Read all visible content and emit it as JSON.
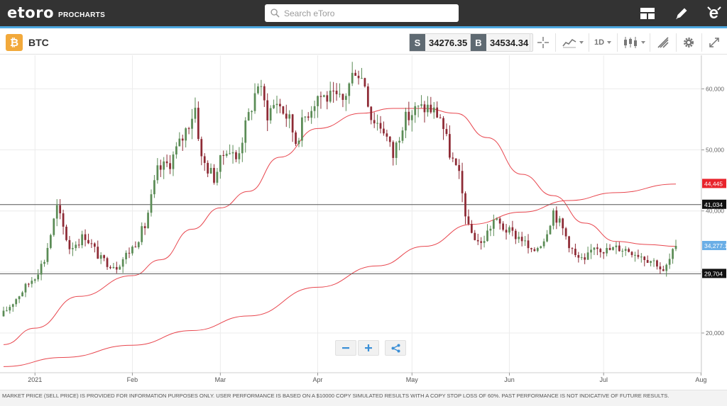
{
  "header": {
    "logo_text": "etoro",
    "logo_sub": "PROCHARTS",
    "search_placeholder": "Search eToro",
    "icons": [
      "layout-icon",
      "pencil-icon",
      "etoro-e-icon"
    ]
  },
  "toolbar": {
    "symbol": "BTC",
    "badge_icon": "bitcoin-icon",
    "sell_tag": "S",
    "sell_price": "34276.35",
    "buy_tag": "B",
    "buy_price": "34534.34",
    "timeframe": "1D",
    "icons": [
      "crosshair-icon",
      "chart-type-icon",
      "candles-icon",
      "drawing-tools-icon",
      "settings-icon",
      "fullscreen-icon"
    ]
  },
  "colors": {
    "up": "#5b8c56",
    "down": "#8e2a35",
    "ma": "#e8464e",
    "accent": "#4ea9e1",
    "line_red_label": "#e8232b",
    "line_black_label": "#111111",
    "price_label": "#6aaee6"
  },
  "chart_data": {
    "type": "candlestick",
    "ylim": [
      13500,
      65500
    ],
    "y_ticks": [
      20000,
      30000,
      40000,
      50000,
      60000
    ],
    "y_tick_labels": [
      "20,000",
      "30,000",
      "40,000",
      "50,000",
      "60,000"
    ],
    "x_tick_labels": [
      "2021",
      "Feb",
      "Mar",
      "Apr",
      "May",
      "Jun",
      "Jul",
      "Aug"
    ],
    "x_tick_dates": [
      "2021-01-01",
      "2021-02-01",
      "2021-03-01",
      "2021-04-01",
      "2021-05-01",
      "2021-06-01",
      "2021-07-01",
      "2021-08-01"
    ],
    "start_date": "2020-12-22",
    "end_date": "2021-07-24",
    "close_path": [
      [
        "2020-12-22",
        23200
      ],
      [
        "2020-12-27",
        26300
      ],
      [
        "2021-01-01",
        29400
      ],
      [
        "2021-01-04",
        32000
      ],
      [
        "2021-01-08",
        40500
      ],
      [
        "2021-01-12",
        34000
      ],
      [
        "2021-01-17",
        36000
      ],
      [
        "2021-01-22",
        32000
      ],
      [
        "2021-01-27",
        31000
      ],
      [
        "2021-02-01",
        34000
      ],
      [
        "2021-02-05",
        37500
      ],
      [
        "2021-02-09",
        46500
      ],
      [
        "2021-02-13",
        48000
      ],
      [
        "2021-02-17",
        52000
      ],
      [
        "2021-02-21",
        57000
      ],
      [
        "2021-02-23",
        48500
      ],
      [
        "2021-02-27",
        45500
      ],
      [
        "2021-03-03",
        50500
      ],
      [
        "2021-03-06",
        48500
      ],
      [
        "2021-03-10",
        55500
      ],
      [
        "2021-03-13",
        61000
      ],
      [
        "2021-03-16",
        56000
      ],
      [
        "2021-03-19",
        58000
      ],
      [
        "2021-03-23",
        54800
      ],
      [
        "2021-03-25",
        51500
      ],
      [
        "2021-03-28",
        55500
      ],
      [
        "2021-04-01",
        59000
      ],
      [
        "2021-04-05",
        58500
      ],
      [
        "2021-04-09",
        58000
      ],
      [
        "2021-04-13",
        63500
      ],
      [
        "2021-04-16",
        61000
      ],
      [
        "2021-04-18",
        55500
      ],
      [
        "2021-04-22",
        53500
      ],
      [
        "2021-04-25",
        49000
      ],
      [
        "2021-04-28",
        54500
      ],
      [
        "2021-05-02",
        56500
      ],
      [
        "2021-05-06",
        57000
      ],
      [
        "2021-05-10",
        55500
      ],
      [
        "2021-05-13",
        49500
      ],
      [
        "2021-05-16",
        45500
      ],
      [
        "2021-05-19",
        37000
      ],
      [
        "2021-05-23",
        34500
      ],
      [
        "2021-05-27",
        38500
      ],
      [
        "2021-06-01",
        36500
      ],
      [
        "2021-06-05",
        35500
      ],
      [
        "2021-06-08",
        33000
      ],
      [
        "2021-06-12",
        35500
      ],
      [
        "2021-06-15",
        40000
      ],
      [
        "2021-06-18",
        37000
      ],
      [
        "2021-06-22",
        32500
      ],
      [
        "2021-06-25",
        31500
      ],
      [
        "2021-06-28",
        34500
      ],
      [
        "2021-07-02",
        33500
      ],
      [
        "2021-07-06",
        34000
      ],
      [
        "2021-07-10",
        33500
      ],
      [
        "2021-07-14",
        32500
      ],
      [
        "2021-07-18",
        31500
      ],
      [
        "2021-07-20",
        29800
      ],
      [
        "2021-07-22",
        32000
      ],
      [
        "2021-07-24",
        34277
      ]
    ],
    "moving_averages": [
      {
        "points": [
          [
            "2020-12-22",
            18100
          ],
          [
            "2021-01-01",
            20800
          ],
          [
            "2021-01-15",
            26000
          ],
          [
            "2021-02-01",
            29400
          ],
          [
            "2021-02-10",
            32000
          ],
          [
            "2021-02-20",
            37000
          ],
          [
            "2021-03-01",
            40500
          ],
          [
            "2021-03-10",
            43200
          ],
          [
            "2021-03-20",
            48800
          ],
          [
            "2021-04-01",
            53500
          ],
          [
            "2021-04-15",
            56000
          ],
          [
            "2021-04-25",
            56800
          ],
          [
            "2021-05-05",
            56800
          ],
          [
            "2021-05-15",
            56000
          ],
          [
            "2021-05-25",
            52000
          ],
          [
            "2021-06-05",
            46000
          ],
          [
            "2021-06-15",
            42500
          ],
          [
            "2021-06-25",
            38000
          ],
          [
            "2021-07-05",
            35000
          ],
          [
            "2021-07-15",
            34500
          ],
          [
            "2021-07-24",
            34200
          ]
        ]
      },
      {
        "points": [
          [
            "2020-12-22",
            14500
          ],
          [
            "2021-01-10",
            16000
          ],
          [
            "2021-02-01",
            18000
          ],
          [
            "2021-02-20",
            20400
          ],
          [
            "2021-03-10",
            22800
          ],
          [
            "2021-04-01",
            27500
          ],
          [
            "2021-04-20",
            31000
          ],
          [
            "2021-05-05",
            34200
          ],
          [
            "2021-05-20",
            37800
          ],
          [
            "2021-06-05",
            39800
          ],
          [
            "2021-06-20",
            41700
          ],
          [
            "2021-07-05",
            43000
          ],
          [
            "2021-07-24",
            44400
          ]
        ]
      }
    ],
    "horizontal_lines": [
      {
        "value": 41034,
        "label": "41,034"
      },
      {
        "value": 29704,
        "label": "29,704"
      }
    ],
    "price_labels": [
      {
        "value": 44445,
        "label": "44,445",
        "style": "red"
      },
      {
        "value": 41034,
        "label": "41,034",
        "style": "black"
      },
      {
        "value": 34277.1,
        "label": "34,277.1",
        "style": "blue"
      },
      {
        "value": 29704,
        "label": "29,704",
        "style": "black"
      }
    ]
  },
  "footer": {
    "disclaimer": "MARKET PRICE (SELL PRICE) IS PROVIDED FOR INFORMATION PURPOSES ONLY. USER PERFORMANCE IS BASED ON A $10000 COPY SIMULATED RESULTS WITH A COPY STOP LOSS OF 60%. PAST PERFORMANCE IS NOT INDICATIVE OF FUTURE RESULTS."
  }
}
